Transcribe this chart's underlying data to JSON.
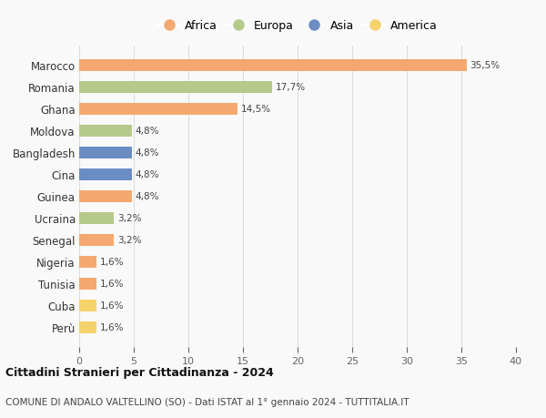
{
  "countries": [
    "Marocco",
    "Romania",
    "Ghana",
    "Moldova",
    "Bangladesh",
    "Cina",
    "Guinea",
    "Ucraina",
    "Senegal",
    "Nigeria",
    "Tunisia",
    "Cuba",
    "Perù"
  ],
  "values": [
    35.5,
    17.7,
    14.5,
    4.8,
    4.8,
    4.8,
    4.8,
    3.2,
    3.2,
    1.6,
    1.6,
    1.6,
    1.6
  ],
  "labels": [
    "35,5%",
    "17,7%",
    "14,5%",
    "4,8%",
    "4,8%",
    "4,8%",
    "4,8%",
    "3,2%",
    "3,2%",
    "1,6%",
    "1,6%",
    "1,6%",
    "1,6%"
  ],
  "continents": [
    "Africa",
    "Europa",
    "Africa",
    "Europa",
    "Asia",
    "Asia",
    "Africa",
    "Europa",
    "Africa",
    "Africa",
    "Africa",
    "America",
    "America"
  ],
  "continent_colors": {
    "Africa": "#F4A870",
    "Europa": "#B5C98A",
    "Asia": "#6B8DC4",
    "America": "#F5D26B"
  },
  "legend_order": [
    "Africa",
    "Europa",
    "Asia",
    "America"
  ],
  "title": "Cittadini Stranieri per Cittadinanza - 2024",
  "subtitle": "COMUNE DI ANDALO VALTELLINO (SO) - Dati ISTAT al 1° gennaio 2024 - TUTTITALIA.IT",
  "xlim": [
    0,
    40
  ],
  "xticks": [
    0,
    5,
    10,
    15,
    20,
    25,
    30,
    35,
    40
  ],
  "bg_color": "#F9F9F9",
  "grid_color": "#DDDDDD",
  "bar_height": 0.55,
  "label_fontsize": 7.5,
  "ytick_fontsize": 8.5,
  "xtick_fontsize": 8,
  "title_fontsize": 9,
  "subtitle_fontsize": 7.5
}
